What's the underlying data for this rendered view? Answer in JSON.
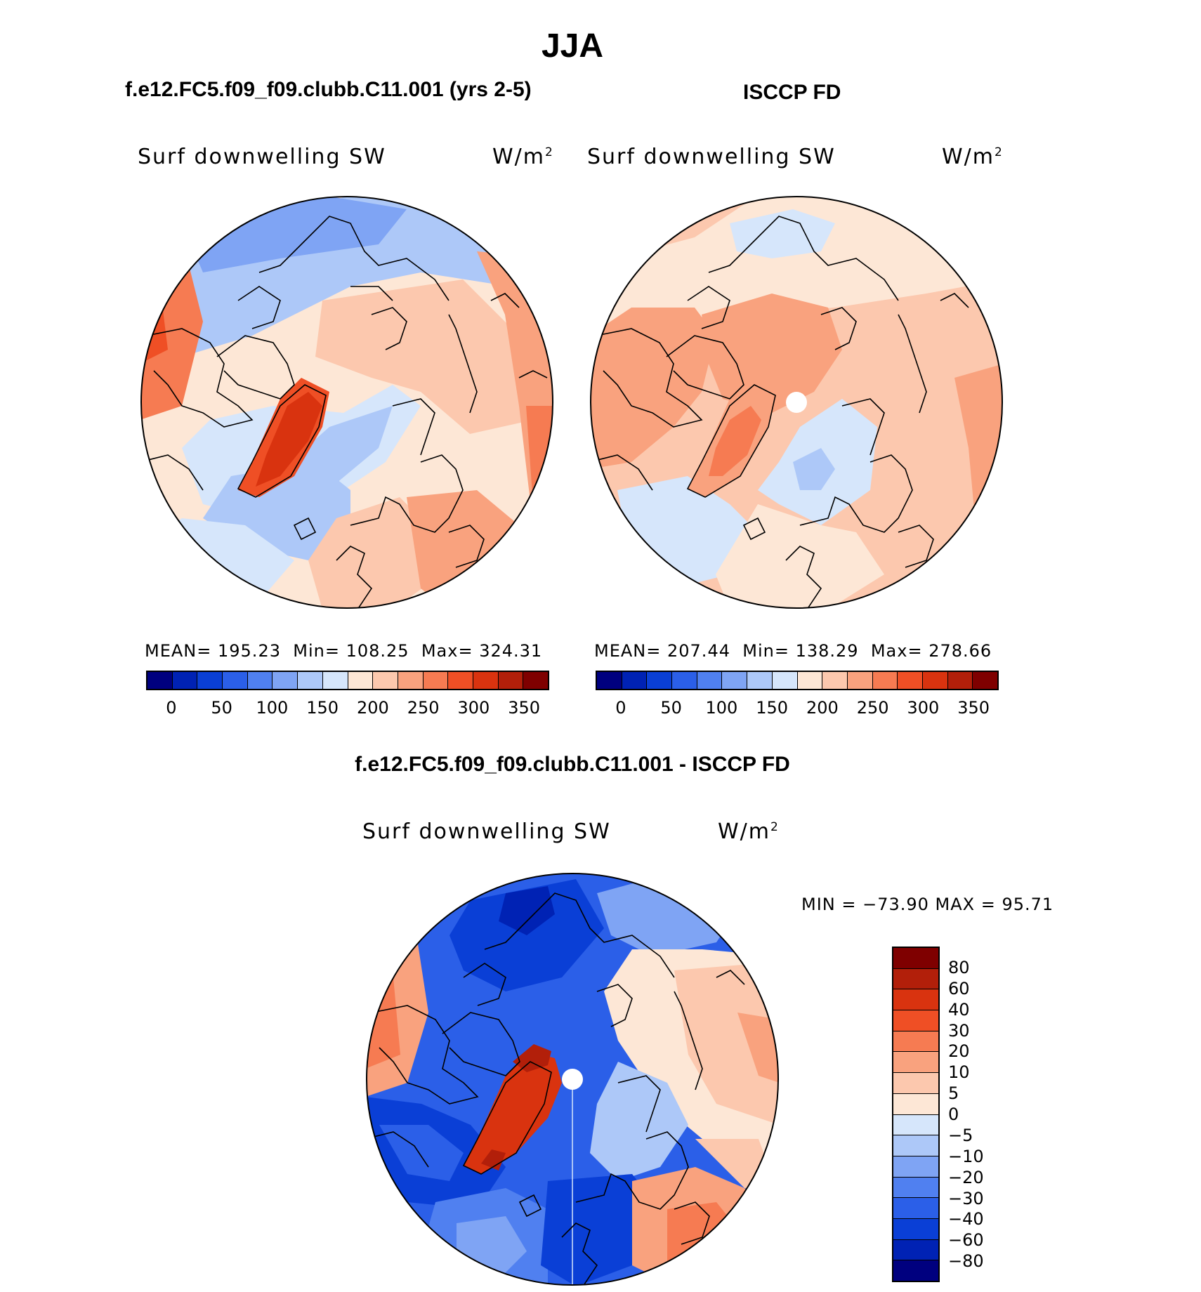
{
  "figure": {
    "title": "JJA",
    "left_panel_title": "f.e12.FC5.f09_f09.clubb.C11.001 (yrs 2-5)",
    "right_panel_title": "ISCCP FD",
    "diff_panel_title": "f.e12.FC5.f09_f09.clubb.C11.001 - ISCCP FD"
  },
  "panels": {
    "model": {
      "variable": "Surf downwelling SW",
      "units_base": "W/m",
      "units_exp": "2",
      "stats": {
        "mean_label": "MEAN=",
        "mean": "195.23",
        "min_label": "Min=",
        "min": "108.25",
        "max_label": "Max=",
        "max": "324.31"
      }
    },
    "obs": {
      "variable": "Surf downwelling SW",
      "units_base": "W/m",
      "units_exp": "2",
      "stats": {
        "mean_label": "MEAN=",
        "mean": "207.44",
        "min_label": "Min=",
        "min": "138.29",
        "max_label": "Max=",
        "max": "278.66"
      }
    },
    "diff": {
      "variable": "Surf downwelling SW",
      "units_base": "W/m",
      "units_exp": "2",
      "minmax": "MIN = −73.90 MAX =  95.71"
    }
  },
  "colorbar_abs": {
    "ticks": [
      "0",
      "50",
      "100",
      "150",
      "200",
      "250",
      "300",
      "350"
    ],
    "colors": [
      "#00007f",
      "#0022b4",
      "#0a3fd6",
      "#2b5fe8",
      "#5080f0",
      "#7fa4f4",
      "#adc8f8",
      "#d6e6fb",
      "#fde7d6",
      "#fcc8ae",
      "#f9a27e",
      "#f67b52",
      "#ef4f25",
      "#d9330f",
      "#b21f0a",
      "#7f0000"
    ]
  },
  "colorbar_diff": {
    "labels": [
      "80",
      "60",
      "40",
      "30",
      "20",
      "10",
      "5",
      "0",
      "−5",
      "−10",
      "−20",
      "−30",
      "−40",
      "−60",
      "−80"
    ],
    "colors": [
      "#7f0000",
      "#b21f0a",
      "#d9330f",
      "#ef4f25",
      "#f67b52",
      "#f9a27e",
      "#fcc8ae",
      "#fde7d6",
      "#d6e6fb",
      "#adc8f8",
      "#7fa4f4",
      "#5080f0",
      "#2b5fe8",
      "#0a3fd6",
      "#0022b4",
      "#00007f"
    ]
  }
}
